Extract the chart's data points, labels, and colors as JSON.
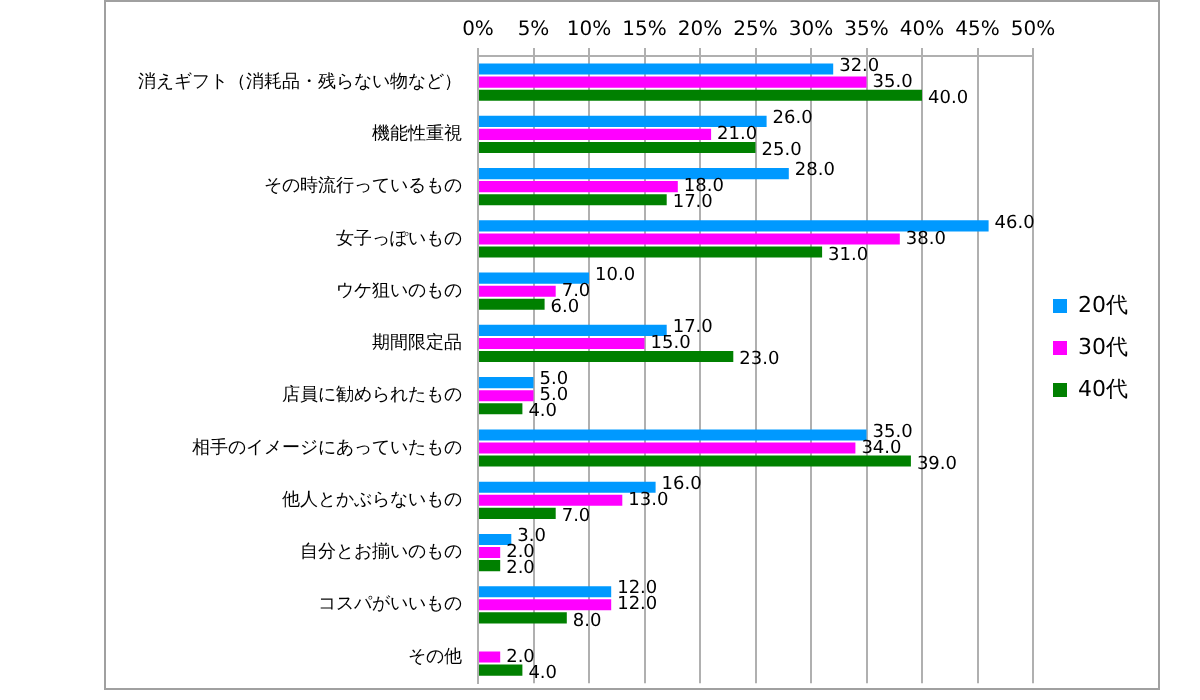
{
  "chart_data": {
    "type": "bar",
    "orientation": "horizontal",
    "categories": [
      "消えギフト（消耗品・残らない物など）",
      "機能性重視",
      "その時流行っているもの",
      "女子っぽいもの",
      "ウケ狙いのもの",
      "期間限定品",
      "店員に勧められたもの",
      "相手のイメージにあっていたもの",
      "他人とかぶらないもの",
      "自分とお揃いのもの",
      "コスパがいいもの",
      "その他"
    ],
    "series": [
      {
        "name": "20代",
        "color": "#0099ff",
        "values": [
          32,
          26,
          28,
          46,
          10,
          17,
          5,
          35,
          16,
          3,
          12,
          0
        ],
        "value_labels": [
          "32.0",
          "26.0",
          "28.0",
          "46.0",
          "10.0",
          "17.0",
          "5.0",
          "35.0",
          "16.0",
          "3.0",
          "12.0",
          null
        ]
      },
      {
        "name": "30代",
        "color": "#ff00ff",
        "values": [
          35,
          21,
          18,
          38,
          7,
          15,
          5,
          34,
          13,
          2,
          12,
          2
        ],
        "value_labels": [
          "35.0",
          "21.0",
          "18.0",
          "38.0",
          "7.0",
          "15.0",
          "5.0",
          "34.0",
          "13.0",
          "2.0",
          "12.0",
          "2.0"
        ]
      },
      {
        "name": "40代",
        "color": "#008000",
        "values": [
          40,
          25,
          17,
          31,
          6,
          23,
          4,
          39,
          7,
          2,
          8,
          4
        ],
        "value_labels": [
          "40.0",
          "25.0",
          "17.0",
          "31.0",
          "6.0",
          "23.0",
          "4.0",
          "39.0",
          "7.0",
          "2.0",
          "8.0",
          "4.0"
        ]
      }
    ],
    "xlim": [
      0,
      50
    ],
    "xticks": [
      {
        "value": 0,
        "label": "0%"
      },
      {
        "value": 5,
        "label": "5%"
      },
      {
        "value": 10,
        "label": "10%"
      },
      {
        "value": 15,
        "label": "15%"
      },
      {
        "value": 20,
        "label": "20%"
      },
      {
        "value": 25,
        "label": "25%"
      },
      {
        "value": 30,
        "label": "30%"
      },
      {
        "value": 35,
        "label": "35%"
      },
      {
        "value": 40,
        "label": "40%"
      },
      {
        "value": 45,
        "label": "45%"
      },
      {
        "value": 50,
        "label": "50%"
      }
    ],
    "grid": "x",
    "legend": "right"
  }
}
